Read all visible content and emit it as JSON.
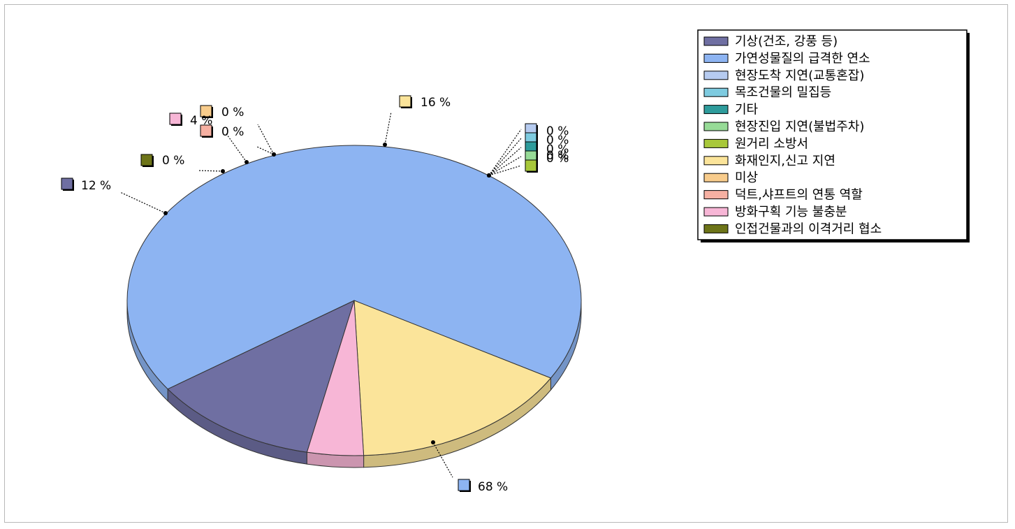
{
  "chart_data": {
    "type": "pie",
    "title": "",
    "legend_position": "top-right",
    "slices": [
      {
        "label": "기상(건조, 강풍 등)",
        "value": 12,
        "value_label": "12 %",
        "color": "#6f6fa2"
      },
      {
        "label": "가연성물질의 급격한 연소",
        "value": 68,
        "value_label": "68 %",
        "color": "#8db4f2"
      },
      {
        "label": "현장도착 지연(교통혼잡)",
        "value": 0,
        "value_label": "0 %",
        "color": "#b6cbf0"
      },
      {
        "label": "목조건물의 밀집등",
        "value": 0,
        "value_label": "0 %",
        "color": "#7ecbe0"
      },
      {
        "label": "기타",
        "value": 0,
        "value_label": "0 %",
        "color": "#2e9c9c"
      },
      {
        "label": "현장진입 지연(불법주차)",
        "value": 0,
        "value_label": "0 %",
        "color": "#97db97"
      },
      {
        "label": "원거리 소방서",
        "value": 0,
        "value_label": "0 %",
        "color": "#a8c83a"
      },
      {
        "label": "화재인지,신고 지연",
        "value": 16,
        "value_label": "16 %",
        "color": "#fbe49a"
      },
      {
        "label": "미상",
        "value": 0,
        "value_label": "0 %",
        "color": "#f8cc8c"
      },
      {
        "label": "덕트,샤프트의 연통 역할",
        "value": 0,
        "value_label": "0 %",
        "color": "#f6b0a2"
      },
      {
        "label": "방화구획 기능 불충분",
        "value": 4,
        "value_label": "4 %",
        "color": "#f7b6d6"
      },
      {
        "label": "인접건물과의 이격거리 협소",
        "value": 0,
        "value_label": "0 %",
        "color": "#6d7418"
      }
    ]
  }
}
